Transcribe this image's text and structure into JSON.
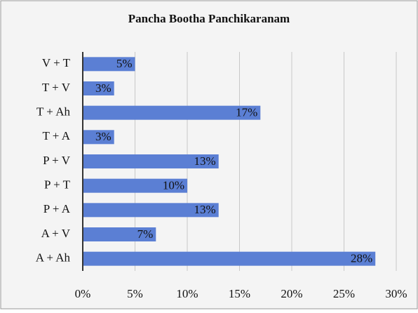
{
  "chart_data": {
    "type": "hbar",
    "title": "Pancha Bootha Panchikaranam",
    "categories": [
      "V + T",
      "T + V",
      "T + Ah",
      "T + A",
      "P + V",
      "P + T",
      "P + A",
      "A + V",
      "A + Ah"
    ],
    "values": [
      5,
      3,
      17,
      3,
      13,
      10,
      13,
      7,
      28
    ],
    "value_labels": [
      "5%",
      "3%",
      "17%",
      "3%",
      "13%",
      "10%",
      "13%",
      "7%",
      "28%"
    ],
    "color": "#5b7fd4",
    "xlim": [
      0,
      30
    ],
    "xticks": [
      {
        "value": 0,
        "label": "0%"
      },
      {
        "value": 5,
        "label": "5%"
      },
      {
        "value": 10,
        "label": "10%"
      },
      {
        "value": 15,
        "label": "15%"
      },
      {
        "value": 20,
        "label": "20%"
      },
      {
        "value": 25,
        "label": "25%"
      },
      {
        "value": 30,
        "label": "30%"
      }
    ],
    "grid": true
  }
}
